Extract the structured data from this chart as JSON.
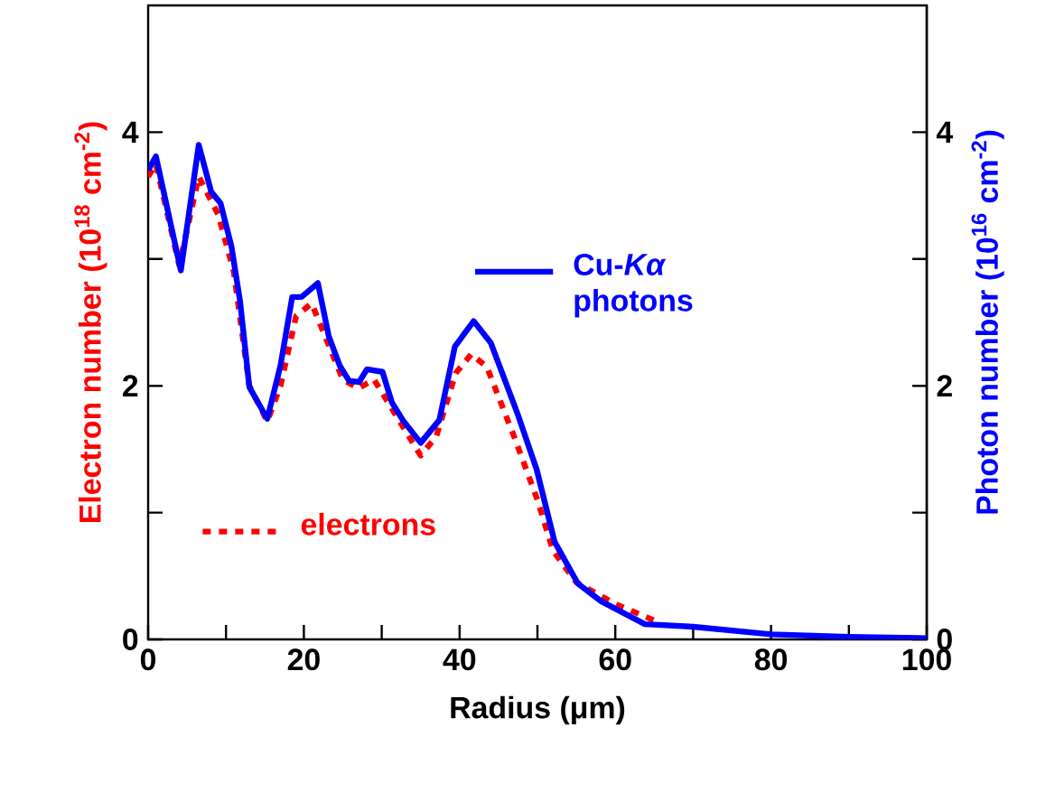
{
  "chart_data": {
    "type": "line",
    "xlabel": "Radius (μm)",
    "ylabel": "Electron number (10$^{18}$ cm$^{-2}$)",
    "y2label": "Photon number (10$^{16}$ cm$^{-2}$)",
    "xlim": [
      0,
      100
    ],
    "ylim": [
      0,
      5
    ],
    "y2lim": [
      0,
      5
    ],
    "xticks": [
      0,
      {
        "value": 10,
        "label": null
      },
      20,
      {
        "value": 30,
        "label": null
      },
      40,
      {
        "value": 50,
        "label": null
      },
      60,
      {
        "value": 70,
        "label": null
      },
      80,
      {
        "value": 90,
        "label": null
      },
      100
    ],
    "yticks": [
      0,
      {
        "value": 1,
        "label": null
      },
      2,
      {
        "value": 3,
        "label": null
      },
      4
    ],
    "y2ticks": [
      0,
      {
        "value": 1,
        "label": null
      },
      2,
      {
        "value": 3,
        "label": null
      },
      4
    ],
    "legend": "center",
    "series": [
      {
        "name": "electrons",
        "color": "#ff0000",
        "line_style": "dotted",
        "axis": "y",
        "x": [
          0,
          1,
          4,
          6.5,
          9,
          11,
          13,
          15.3,
          17,
          19,
          21,
          23,
          25,
          27,
          29,
          31,
          35,
          37,
          39.5,
          41.5,
          43.5,
          47,
          50,
          52,
          55,
          60,
          65
        ],
        "values": [
          3.65,
          3.75,
          2.95,
          3.65,
          3.35,
          2.9,
          2.0,
          1.72,
          2.0,
          2.55,
          2.65,
          2.35,
          2.05,
          1.98,
          2.05,
          1.85,
          1.45,
          1.6,
          2.1,
          2.25,
          2.15,
          1.6,
          1.1,
          0.7,
          0.45,
          0.28,
          0.15
        ]
      },
      {
        "name": "Cu-*Kα* photons",
        "color": "#0000ff",
        "line_style": "solid",
        "axis": "y2",
        "x": [
          0,
          1,
          4.2,
          6.5,
          8.1,
          9.3,
          10.7,
          11.8,
          13,
          15.3,
          17,
          18.5,
          19.7,
          21.8,
          23.2,
          24.6,
          25.8,
          27.1,
          28.1,
          30.1,
          31.3,
          32.7,
          35,
          37.4,
          39.4,
          41.8,
          44,
          47.5,
          49.9,
          52.2,
          55.2,
          58.2,
          63.8,
          70,
          80,
          90,
          100
        ],
        "values": [
          3.7,
          3.81,
          2.91,
          3.9,
          3.53,
          3.44,
          3.1,
          2.67,
          1.99,
          1.74,
          2.16,
          2.7,
          2.7,
          2.81,
          2.39,
          2.16,
          2.04,
          2.03,
          2.13,
          2.11,
          1.87,
          1.73,
          1.55,
          1.73,
          2.31,
          2.51,
          2.34,
          1.77,
          1.34,
          0.77,
          0.44,
          0.3,
          0.12,
          0.1,
          0.04,
          0.02,
          0.01
        ]
      }
    ]
  }
}
